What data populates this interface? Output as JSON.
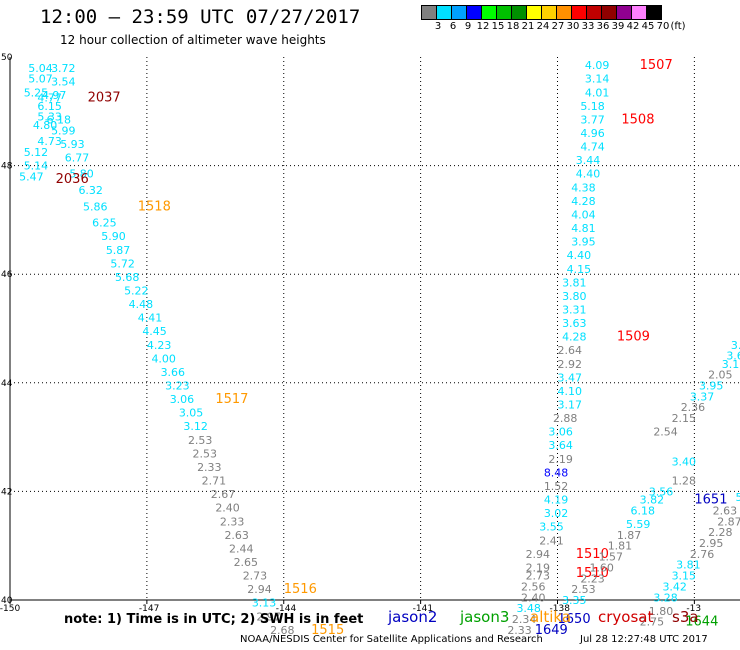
{
  "header": {
    "title": "12:00 – 23:59 UTC 07/27/2017",
    "subtitle": "12 hour collection of altimeter wave heights"
  },
  "colorbar": {
    "colors": [
      "#808080",
      "#00e0ff",
      "#00a0ff",
      "#0000ff",
      "#00ff00",
      "#00c000",
      "#009000",
      "#ffff00",
      "#ffd000",
      "#ff9000",
      "#ff0000",
      "#c00000",
      "#900000",
      "#900090",
      "#ff80ff",
      "#000000"
    ],
    "labels": [
      "3",
      "6",
      "9",
      "12",
      "15",
      "18",
      "21",
      "24",
      "27",
      "30",
      "33",
      "36",
      "39",
      "42",
      "45",
      "70"
    ],
    "unit": "(ft)"
  },
  "footer": {
    "note": "note: 1) Time is in UTC; 2) SWH is in feet",
    "satellites": [
      {
        "name": "jason2",
        "color": "#0000c0"
      },
      {
        "name": "jason3",
        "color": "#00a000"
      },
      {
        "name": "altika",
        "color": "#ff9900"
      },
      {
        "name": "cryosat",
        "color": "#d00000"
      },
      {
        "name": "s3a",
        "color": "#900000"
      }
    ],
    "credit": "NOAA/NESDIS Center for Satellite Applications and Research",
    "timestamp": "Jul 28 12:27:48 UTC 2017"
  },
  "chart_data": {
    "type": "scatter",
    "xlim": [
      -150,
      -134
    ],
    "ylim": [
      40,
      50
    ],
    "x_ticks": [
      "-150",
      "-147",
      "-144",
      "-141",
      "-138",
      "-13"
    ],
    "y_ticks": [
      "40",
      "42",
      "44",
      "46",
      "48",
      "50"
    ],
    "grid": true,
    "point_labels": [
      {
        "lon": -149.6,
        "lat": 49.8,
        "text": "5.04",
        "color": "#00e0ff"
      },
      {
        "lon": -149.1,
        "lat": 49.8,
        "text": "3.72",
        "color": "#00e0ff"
      },
      {
        "lon": -149.6,
        "lat": 49.6,
        "text": "5.07",
        "color": "#00e0ff"
      },
      {
        "lon": -149.1,
        "lat": 49.55,
        "text": "3.54",
        "color": "#00e0ff"
      },
      {
        "lon": -149.7,
        "lat": 49.35,
        "text": "5.25",
        "color": "#00e0ff"
      },
      {
        "lon": -149.3,
        "lat": 49.3,
        "text": "4.97",
        "color": "#00e0ff"
      },
      {
        "lon": -149.4,
        "lat": 49.25,
        "text": "4.77",
        "color": "#00e0ff"
      },
      {
        "lon": -148.3,
        "lat": 49.25,
        "text": "2037",
        "color": "#900000"
      },
      {
        "lon": -149.4,
        "lat": 49.1,
        "text": "6.15",
        "color": "#00e0ff"
      },
      {
        "lon": -149.4,
        "lat": 48.9,
        "text": "5.33",
        "color": "#00e0ff"
      },
      {
        "lon": -149.2,
        "lat": 48.85,
        "text": "6.18",
        "color": "#00e0ff"
      },
      {
        "lon": -149.5,
        "lat": 48.75,
        "text": "4.80",
        "color": "#00e0ff"
      },
      {
        "lon": -149.1,
        "lat": 48.65,
        "text": "5.99",
        "color": "#00e0ff"
      },
      {
        "lon": -149.4,
        "lat": 48.45,
        "text": "4.73",
        "color": "#00e0ff"
      },
      {
        "lon": -148.9,
        "lat": 48.4,
        "text": "5.93",
        "color": "#00e0ff"
      },
      {
        "lon": -149.7,
        "lat": 48.25,
        "text": "5.12",
        "color": "#00e0ff"
      },
      {
        "lon": -148.8,
        "lat": 48.15,
        "text": "6.77",
        "color": "#00e0ff"
      },
      {
        "lon": -149.7,
        "lat": 48.0,
        "text": "5.14",
        "color": "#00e0ff"
      },
      {
        "lon": -148.7,
        "lat": 47.85,
        "text": "5.80",
        "color": "#00e0ff"
      },
      {
        "lon": -149.8,
        "lat": 47.8,
        "text": "5.47",
        "color": "#00e0ff"
      },
      {
        "lon": -149.0,
        "lat": 47.75,
        "text": "2036",
        "color": "#900000"
      },
      {
        "lon": -148.5,
        "lat": 47.55,
        "text": "6.32",
        "color": "#00e0ff"
      },
      {
        "lon": -148.4,
        "lat": 47.25,
        "text": "5.86",
        "color": "#00e0ff"
      },
      {
        "lon": -147.2,
        "lat": 47.25,
        "text": "1518",
        "color": "#ff9900"
      },
      {
        "lon": -148.2,
        "lat": 46.95,
        "text": "6.25",
        "color": "#00e0ff"
      },
      {
        "lon": -148.0,
        "lat": 46.7,
        "text": "5.90",
        "color": "#00e0ff"
      },
      {
        "lon": -147.9,
        "lat": 46.45,
        "text": "5.87",
        "color": "#00e0ff"
      },
      {
        "lon": -147.8,
        "lat": 46.2,
        "text": "5.72",
        "color": "#00e0ff"
      },
      {
        "lon": -147.7,
        "lat": 45.95,
        "text": "5.68",
        "color": "#00e0ff"
      },
      {
        "lon": -147.5,
        "lat": 45.7,
        "text": "5.22",
        "color": "#00e0ff"
      },
      {
        "lon": -147.4,
        "lat": 45.45,
        "text": "4.48",
        "color": "#00e0ff"
      },
      {
        "lon": -147.2,
        "lat": 45.2,
        "text": "4.41",
        "color": "#00e0ff"
      },
      {
        "lon": -147.1,
        "lat": 44.95,
        "text": "4.45",
        "color": "#00e0ff"
      },
      {
        "lon": -147.0,
        "lat": 44.7,
        "text": "4.23",
        "color": "#00e0ff"
      },
      {
        "lon": -146.9,
        "lat": 44.45,
        "text": "4.00",
        "color": "#00e0ff"
      },
      {
        "lon": -146.7,
        "lat": 44.2,
        "text": "3.66",
        "color": "#00e0ff"
      },
      {
        "lon": -146.6,
        "lat": 43.95,
        "text": "3.23",
        "color": "#00e0ff"
      },
      {
        "lon": -146.5,
        "lat": 43.7,
        "text": "3.06",
        "color": "#00e0ff"
      },
      {
        "lon": -145.5,
        "lat": 43.7,
        "text": "1517",
        "color": "#ff9900"
      },
      {
        "lon": -146.3,
        "lat": 43.45,
        "text": "3.05",
        "color": "#00e0ff"
      },
      {
        "lon": -146.2,
        "lat": 43.2,
        "text": "3.12",
        "color": "#00e0ff"
      },
      {
        "lon": -146.1,
        "lat": 42.95,
        "text": "2.53",
        "color": "#808080"
      },
      {
        "lon": -146.0,
        "lat": 42.7,
        "text": "2.53",
        "color": "#808080"
      },
      {
        "lon": -145.9,
        "lat": 42.45,
        "text": "2.33",
        "color": "#808080"
      },
      {
        "lon": -145.8,
        "lat": 42.2,
        "text": "2.71",
        "color": "#808080"
      },
      {
        "lon": -145.6,
        "lat": 41.95,
        "text": "2.67",
        "color": "#808080"
      },
      {
        "lon": -145.5,
        "lat": 41.7,
        "text": "2.40",
        "color": "#808080"
      },
      {
        "lon": -145.4,
        "lat": 41.45,
        "text": "2.33",
        "color": "#808080"
      },
      {
        "lon": -145.3,
        "lat": 41.2,
        "text": "2.63",
        "color": "#808080"
      },
      {
        "lon": -145.2,
        "lat": 40.95,
        "text": "2.44",
        "color": "#808080"
      },
      {
        "lon": -145.1,
        "lat": 40.7,
        "text": "2.65",
        "color": "#808080"
      },
      {
        "lon": -144.9,
        "lat": 40.45,
        "text": "2.73",
        "color": "#808080"
      },
      {
        "lon": -144.8,
        "lat": 40.2,
        "text": "2.94",
        "color": "#808080"
      },
      {
        "lon": -144.0,
        "lat": 40.2,
        "text": "1516",
        "color": "#ff9900"
      },
      {
        "lon": -144.7,
        "lat": 39.95,
        "text": "3.13",
        "color": "#00e0ff"
      },
      {
        "lon": -144.6,
        "lat": 39.7,
        "text": "2.97",
        "color": "#808080"
      },
      {
        "lon": -144.3,
        "lat": 39.45,
        "text": "2.68",
        "color": "#808080"
      },
      {
        "lon": -143.4,
        "lat": 39.45,
        "text": "1515",
        "color": "#ff9900"
      },
      {
        "lon": -137.4,
        "lat": 49.85,
        "text": "4.09",
        "color": "#00e0ff"
      },
      {
        "lon": -136.2,
        "lat": 49.85,
        "text": "1507",
        "color": "#ff0000"
      },
      {
        "lon": -137.4,
        "lat": 49.6,
        "text": "3.14",
        "color": "#00e0ff"
      },
      {
        "lon": -137.4,
        "lat": 49.35,
        "text": "4.01",
        "color": "#00e0ff"
      },
      {
        "lon": -137.5,
        "lat": 49.1,
        "text": "5.18",
        "color": "#00e0ff"
      },
      {
        "lon": -137.5,
        "lat": 48.85,
        "text": "3.77",
        "color": "#00e0ff"
      },
      {
        "lon": -136.6,
        "lat": 48.85,
        "text": "1508",
        "color": "#ff0000"
      },
      {
        "lon": -137.5,
        "lat": 48.6,
        "text": "4.96",
        "color": "#00e0ff"
      },
      {
        "lon": -137.5,
        "lat": 48.35,
        "text": "4.74",
        "color": "#00e0ff"
      },
      {
        "lon": -137.6,
        "lat": 48.1,
        "text": "3.44",
        "color": "#00e0ff"
      },
      {
        "lon": -137.6,
        "lat": 47.85,
        "text": "4.40",
        "color": "#00e0ff"
      },
      {
        "lon": -137.7,
        "lat": 47.6,
        "text": "4.38",
        "color": "#00e0ff"
      },
      {
        "lon": -137.7,
        "lat": 47.35,
        "text": "4.28",
        "color": "#00e0ff"
      },
      {
        "lon": -137.7,
        "lat": 47.1,
        "text": "4.04",
        "color": "#00e0ff"
      },
      {
        "lon": -137.7,
        "lat": 46.85,
        "text": "4.81",
        "color": "#00e0ff"
      },
      {
        "lon": -137.7,
        "lat": 46.6,
        "text": "3.95",
        "color": "#00e0ff"
      },
      {
        "lon": -137.8,
        "lat": 46.35,
        "text": "4.40",
        "color": "#00e0ff"
      },
      {
        "lon": -137.8,
        "lat": 46.1,
        "text": "4.15",
        "color": "#00e0ff"
      },
      {
        "lon": -137.9,
        "lat": 45.85,
        "text": "3.81",
        "color": "#00e0ff"
      },
      {
        "lon": -137.9,
        "lat": 45.6,
        "text": "3.80",
        "color": "#00e0ff"
      },
      {
        "lon": -137.9,
        "lat": 45.35,
        "text": "3.31",
        "color": "#00e0ff"
      },
      {
        "lon": -137.9,
        "lat": 45.1,
        "text": "3.63",
        "color": "#00e0ff"
      },
      {
        "lon": -137.9,
        "lat": 44.85,
        "text": "4.28",
        "color": "#00e0ff"
      },
      {
        "lon": -136.7,
        "lat": 44.85,
        "text": "1509",
        "color": "#ff0000"
      },
      {
        "lon": -138.0,
        "lat": 44.6,
        "text": "2.64",
        "color": "#808080"
      },
      {
        "lon": -138.0,
        "lat": 44.35,
        "text": "2.92",
        "color": "#808080"
      },
      {
        "lon": -138.0,
        "lat": 44.1,
        "text": "3.47",
        "color": "#00e0ff"
      },
      {
        "lon": -138.0,
        "lat": 43.85,
        "text": "4.10",
        "color": "#00e0ff"
      },
      {
        "lon": -138.0,
        "lat": 43.6,
        "text": "3.17",
        "color": "#00e0ff"
      },
      {
        "lon": -138.1,
        "lat": 43.35,
        "text": "2.88",
        "color": "#808080"
      },
      {
        "lon": -138.2,
        "lat": 43.1,
        "text": "3.06",
        "color": "#00e0ff"
      },
      {
        "lon": -138.2,
        "lat": 42.85,
        "text": "3.64",
        "color": "#00e0ff"
      },
      {
        "lon": -138.2,
        "lat": 42.6,
        "text": "2.19",
        "color": "#808080"
      },
      {
        "lon": -138.3,
        "lat": 42.35,
        "text": "8.48",
        "color": "#0000ff"
      },
      {
        "lon": -138.3,
        "lat": 42.1,
        "text": "1.52",
        "color": "#808080"
      },
      {
        "lon": -138.3,
        "lat": 41.85,
        "text": "4.19",
        "color": "#00e0ff"
      },
      {
        "lon": -138.3,
        "lat": 41.6,
        "text": "3.02",
        "color": "#00e0ff"
      },
      {
        "lon": -138.4,
        "lat": 41.35,
        "text": "3.55",
        "color": "#00e0ff"
      },
      {
        "lon": -138.4,
        "lat": 41.1,
        "text": "2.41",
        "color": "#808080"
      },
      {
        "lon": -138.7,
        "lat": 40.85,
        "text": "2.94",
        "color": "#808080"
      },
      {
        "lon": -137.6,
        "lat": 40.85,
        "text": "1510",
        "color": "#ff0000"
      },
      {
        "lon": -138.7,
        "lat": 40.6,
        "text": "2.19",
        "color": "#808080"
      },
      {
        "lon": -138.7,
        "lat": 40.45,
        "text": "2.73",
        "color": "#808080"
      },
      {
        "lon": -137.6,
        "lat": 40.5,
        "text": "1510",
        "color": "#ff0000"
      },
      {
        "lon": -138.8,
        "lat": 40.25,
        "text": "2.56",
        "color": "#808080"
      },
      {
        "lon": -138.8,
        "lat": 40.05,
        "text": "2.40",
        "color": "#808080"
      },
      {
        "lon": -138.9,
        "lat": 39.85,
        "text": "3.48",
        "color": "#00e0ff"
      },
      {
        "lon": -139.0,
        "lat": 39.65,
        "text": "2.34",
        "color": "#808080"
      },
      {
        "lon": -139.1,
        "lat": 39.45,
        "text": "2.33",
        "color": "#808080"
      },
      {
        "lon": -138.0,
        "lat": 39.65,
        "text": "1650",
        "color": "#0000c0"
      },
      {
        "lon": -138.5,
        "lat": 39.45,
        "text": "1649",
        "color": "#0000c0"
      },
      {
        "lon": -135.5,
        "lat": 42.2,
        "text": "1.28",
        "color": "#808080"
      },
      {
        "lon": -136.0,
        "lat": 42.0,
        "text": "3.56",
        "color": "#00e0ff"
      },
      {
        "lon": -136.2,
        "lat": 41.85,
        "text": "3.82",
        "color": "#00e0ff"
      },
      {
        "lon": -135.0,
        "lat": 41.85,
        "text": "1651",
        "color": "#0000c0"
      },
      {
        "lon": -136.4,
        "lat": 41.65,
        "text": "6.18",
        "color": "#00e0ff"
      },
      {
        "lon": -136.5,
        "lat": 41.4,
        "text": "5.59",
        "color": "#00e0ff"
      },
      {
        "lon": -136.7,
        "lat": 41.2,
        "text": "1.87",
        "color": "#808080"
      },
      {
        "lon": -136.9,
        "lat": 41.0,
        "text": "1.81",
        "color": "#808080"
      },
      {
        "lon": -137.1,
        "lat": 40.8,
        "text": "1.57",
        "color": "#808080"
      },
      {
        "lon": -137.3,
        "lat": 40.6,
        "text": "1.60",
        "color": "#808080"
      },
      {
        "lon": -137.5,
        "lat": 40.4,
        "text": "2.23",
        "color": "#808080"
      },
      {
        "lon": -137.7,
        "lat": 40.2,
        "text": "2.53",
        "color": "#808080"
      },
      {
        "lon": -137.9,
        "lat": 40.0,
        "text": "3.35",
        "color": "#00e0ff"
      },
      {
        "lon": -135.9,
        "lat": 43.1,
        "text": "2.54",
        "color": "#808080"
      },
      {
        "lon": -135.5,
        "lat": 43.35,
        "text": "2.15",
        "color": "#808080"
      },
      {
        "lon": -135.3,
        "lat": 43.55,
        "text": "2.36",
        "color": "#808080"
      },
      {
        "lon": -135.1,
        "lat": 43.75,
        "text": "3.37",
        "color": "#00e0ff"
      },
      {
        "lon": -134.9,
        "lat": 43.95,
        "text": "3.95",
        "color": "#00e0ff"
      },
      {
        "lon": -134.7,
        "lat": 44.15,
        "text": "2.05",
        "color": "#808080"
      },
      {
        "lon": -134.4,
        "lat": 44.35,
        "text": "3.10",
        "color": "#00e0ff"
      },
      {
        "lon": -134.3,
        "lat": 44.5,
        "text": "3.63",
        "color": "#00e0ff"
      },
      {
        "lon": -134.2,
        "lat": 44.7,
        "text": "3.",
        "color": "#00e0ff"
      },
      {
        "lon": -135.5,
        "lat": 42.55,
        "text": "3.40",
        "color": "#00e0ff"
      },
      {
        "lon": -134.6,
        "lat": 41.65,
        "text": "2.63",
        "color": "#808080"
      },
      {
        "lon": -134.5,
        "lat": 41.45,
        "text": "2.87",
        "color": "#808080"
      },
      {
        "lon": -134.7,
        "lat": 41.25,
        "text": "2.28",
        "color": "#808080"
      },
      {
        "lon": -134.9,
        "lat": 41.05,
        "text": "2.95",
        "color": "#808080"
      },
      {
        "lon": -135.1,
        "lat": 40.85,
        "text": "2.76",
        "color": "#808080"
      },
      {
        "lon": -135.4,
        "lat": 40.65,
        "text": "3.81",
        "color": "#00e0ff"
      },
      {
        "lon": -135.5,
        "lat": 40.45,
        "text": "3.15",
        "color": "#00e0ff"
      },
      {
        "lon": -135.7,
        "lat": 40.25,
        "text": "3.42",
        "color": "#00e0ff"
      },
      {
        "lon": -135.9,
        "lat": 40.05,
        "text": "3.28",
        "color": "#00e0ff"
      },
      {
        "lon": -136.0,
        "lat": 39.8,
        "text": "1.80",
        "color": "#808080"
      },
      {
        "lon": -136.2,
        "lat": 39.6,
        "text": "2.75",
        "color": "#808080"
      },
      {
        "lon": -135.2,
        "lat": 39.6,
        "text": "1644",
        "color": "#00a000"
      },
      {
        "lon": -134.0,
        "lat": 40.55,
        "text": "164",
        "color": "#00a000"
      },
      {
        "lon": -134.1,
        "lat": 41.9,
        "text": "5.66",
        "color": "#00e0ff"
      },
      {
        "lon": -134.0,
        "lat": 42.1,
        "text": "3.0",
        "color": "#00e0ff"
      }
    ]
  }
}
